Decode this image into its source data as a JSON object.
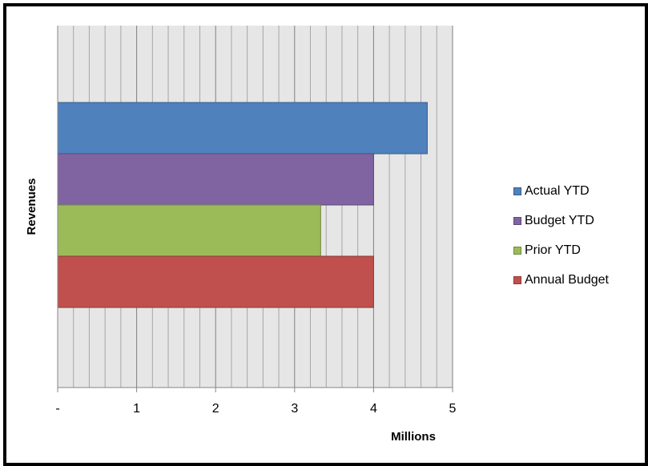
{
  "chart_data": {
    "type": "bar",
    "orientation": "horizontal",
    "categories": [
      "Revenues"
    ],
    "series": [
      {
        "name": "Actual YTD",
        "values": [
          4.68
        ],
        "color": "#4f81bd"
      },
      {
        "name": "Budget YTD",
        "values": [
          4.0
        ],
        "color": "#8064a2"
      },
      {
        "name": "Prior YTD",
        "values": [
          3.33
        ],
        "color": "#9bbb59"
      },
      {
        "name": "Annual Budget",
        "values": [
          4.0
        ],
        "color": "#c0504d"
      }
    ],
    "xlim": [
      0,
      5
    ],
    "x_ticks": [
      "-",
      "1",
      "2",
      "3",
      "4",
      "5"
    ],
    "xlabel": "Millions",
    "ylabel": "Revenues",
    "title": "",
    "grid": true,
    "minor_grid": true,
    "plot_background": "#e6e6e6",
    "legend_position": "right"
  }
}
